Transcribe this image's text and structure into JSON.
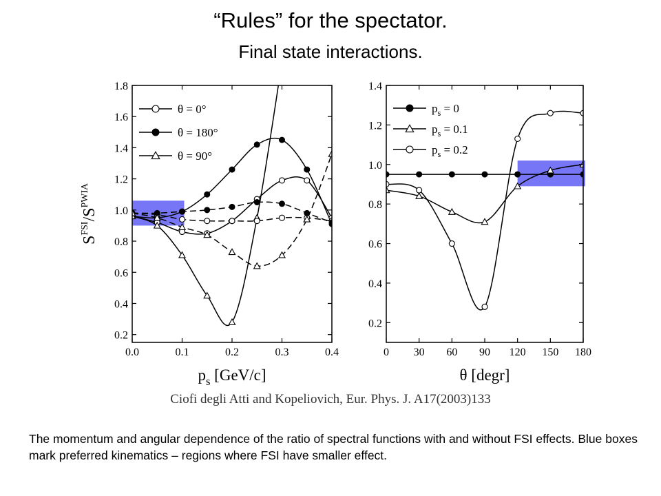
{
  "slide": {
    "title": "“Rules”  for the spectator.",
    "subtitle": "Final state interactions.",
    "citation": "Ciofi degli Atti and Kopeliovich, Eur. Phys. J. A17(2003)133",
    "caption": "The momentum and angular dependence of the ratio of spectral functions with and without FSI effects. Blue boxes mark preferred kinematics – regions where FSI have smaller effect."
  },
  "colors": {
    "highlight": "#6f6ff5",
    "line": "#000000"
  },
  "chart_data": [
    {
      "type": "line",
      "xlabel": "p_s [GeV/c]",
      "ylabel": "S^FSI/S^PWIA",
      "xlim": [
        0.0,
        0.4
      ],
      "ylim": [
        0.15,
        1.8
      ],
      "xticks": [
        "0.0",
        "0.1",
        "0.2",
        "0.3",
        "0.4"
      ],
      "yticks": [
        "0.2",
        "0.4",
        "0.6",
        "0.8",
        "1.0",
        "1.2",
        "1.4",
        "1.6",
        "1.8"
      ],
      "legend": {
        "placement": "top-left",
        "entries": [
          "θ = 0°",
          "θ = 180°",
          "θ = 90°"
        ]
      },
      "highlight_box": {
        "x": [
          0.0,
          0.1
        ],
        "y": [
          0.9,
          1.06
        ]
      },
      "series": [
        {
          "name": "θ = 0°",
          "marker": "circle-open",
          "style": "solid",
          "x": [
            0.0,
            0.05,
            0.1,
            0.15,
            0.2,
            0.25,
            0.3,
            0.35,
            0.4
          ],
          "y": [
            0.96,
            0.92,
            0.86,
            0.85,
            0.93,
            1.07,
            1.19,
            1.19,
            0.95
          ]
        },
        {
          "name": "θ = 180°",
          "marker": "circle-filled",
          "style": "solid",
          "x": [
            0.0,
            0.05,
            0.1,
            0.15,
            0.2,
            0.25,
            0.3,
            0.35,
            0.4
          ],
          "y": [
            0.96,
            0.95,
            0.99,
            1.1,
            1.26,
            1.42,
            1.45,
            1.26,
            0.91
          ]
        },
        {
          "name": "θ = 90°",
          "marker": "triangle-open",
          "style": "solid",
          "x": [
            0.0,
            0.05,
            0.1,
            0.15,
            0.2,
            0.25,
            0.3
          ],
          "y": [
            0.96,
            0.9,
            0.71,
            0.45,
            0.28,
            0.95,
            1.95
          ]
        },
        {
          "name": "θ = 0° (dashed)",
          "marker": "circle-open",
          "style": "dashed",
          "x": [
            0.0,
            0.05,
            0.1,
            0.15,
            0.2,
            0.25,
            0.3,
            0.35,
            0.4
          ],
          "y": [
            0.98,
            0.97,
            0.94,
            0.93,
            0.93,
            0.93,
            0.95,
            0.95,
            0.93
          ]
        },
        {
          "name": "θ = 180° (dashed)",
          "marker": "circle-filled",
          "style": "dashed",
          "x": [
            0.0,
            0.05,
            0.1,
            0.15,
            0.2,
            0.25,
            0.3,
            0.35,
            0.4
          ],
          "y": [
            0.98,
            0.98,
            0.99,
            1.0,
            1.02,
            1.05,
            1.04,
            0.98,
            0.92
          ]
        },
        {
          "name": "θ = 90° (dashed)",
          "marker": "triangle-open",
          "style": "dashed",
          "x": [
            0.0,
            0.05,
            0.1,
            0.15,
            0.2,
            0.25,
            0.3,
            0.35,
            0.4
          ],
          "y": [
            0.98,
            0.95,
            0.89,
            0.84,
            0.73,
            0.64,
            0.71,
            0.94,
            1.36
          ]
        }
      ]
    },
    {
      "type": "line",
      "xlabel": "θ [degr]",
      "ylabel": "",
      "xlim": [
        0,
        180
      ],
      "ylim": [
        0.1,
        1.4
      ],
      "xticks": [
        "0",
        "30",
        "60",
        "90",
        "120",
        "150",
        "180"
      ],
      "yticks": [
        "0.2",
        "0.4",
        "0.6",
        "0.8",
        "1.0",
        "1.2",
        "1.4"
      ],
      "legend": {
        "placement": "top-left",
        "entries": [
          "p_s = 0",
          "p_s = 0.1",
          "p_s =  0.2"
        ]
      },
      "highlight_box": {
        "x": [
          120,
          180
        ],
        "y": [
          0.89,
          1.02
        ]
      },
      "series": [
        {
          "name": "p_s = 0",
          "marker": "circle-filled",
          "style": "solid",
          "x": [
            0,
            30,
            60,
            90,
            120,
            150,
            180
          ],
          "y": [
            0.95,
            0.95,
            0.95,
            0.95,
            0.95,
            0.95,
            0.95
          ]
        },
        {
          "name": "p_s = 0.1",
          "marker": "triangle-open",
          "style": "solid",
          "x": [
            0,
            30,
            60,
            90,
            120,
            150,
            180
          ],
          "y": [
            0.87,
            0.84,
            0.76,
            0.71,
            0.89,
            0.97,
            1.0
          ]
        },
        {
          "name": "p_s =  0.2",
          "marker": "circle-open",
          "style": "solid",
          "x": [
            0,
            30,
            60,
            90,
            120,
            150,
            180
          ],
          "y": [
            0.9,
            0.87,
            0.6,
            0.28,
            1.13,
            1.26,
            1.26
          ]
        }
      ]
    }
  ]
}
